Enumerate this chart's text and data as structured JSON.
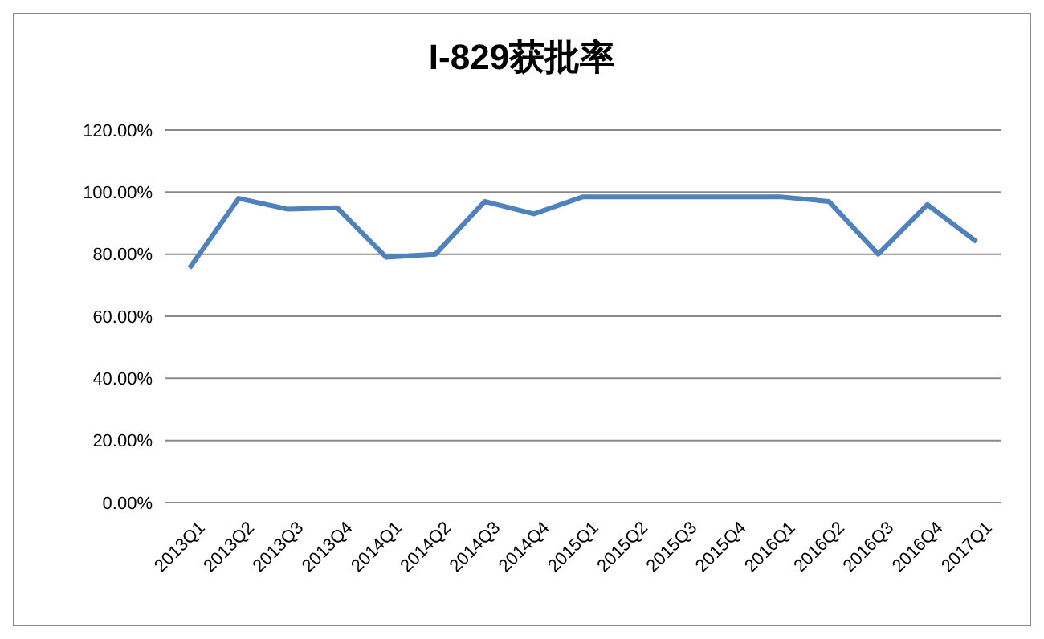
{
  "chart_data": {
    "type": "line",
    "title": "I-829获批率",
    "categories": [
      "2013Q1",
      "2013Q2",
      "2013Q3",
      "2013Q4",
      "2014Q1",
      "2014Q2",
      "2014Q3",
      "2014Q4",
      "2015Q1",
      "2015Q2",
      "2015Q3",
      "2015Q4",
      "2016Q1",
      "2016Q2",
      "2016Q3",
      "2016Q4",
      "2017Q1"
    ],
    "series": [
      {
        "color": "#4f81bd",
        "values": [
          75.5,
          98,
          94.5,
          95,
          79,
          80,
          97,
          93,
          98.5,
          98.5,
          98.5,
          98.5,
          98.5,
          97,
          80,
          96,
          84
        ]
      }
    ],
    "ylim": [
      0,
      120
    ],
    "yticks": [
      {
        "value": 0,
        "label": "0.00%"
      },
      {
        "value": 20,
        "label": "20.00%"
      },
      {
        "value": 40,
        "label": "40.00%"
      },
      {
        "value": 60,
        "label": "60.00%"
      },
      {
        "value": 80,
        "label": "80.00%"
      },
      {
        "value": 100,
        "label": "100.00%"
      },
      {
        "value": 120,
        "label": "120.00%"
      }
    ],
    "grid": "y",
    "legend": false,
    "marker": "none",
    "line_style": "solid"
  }
}
